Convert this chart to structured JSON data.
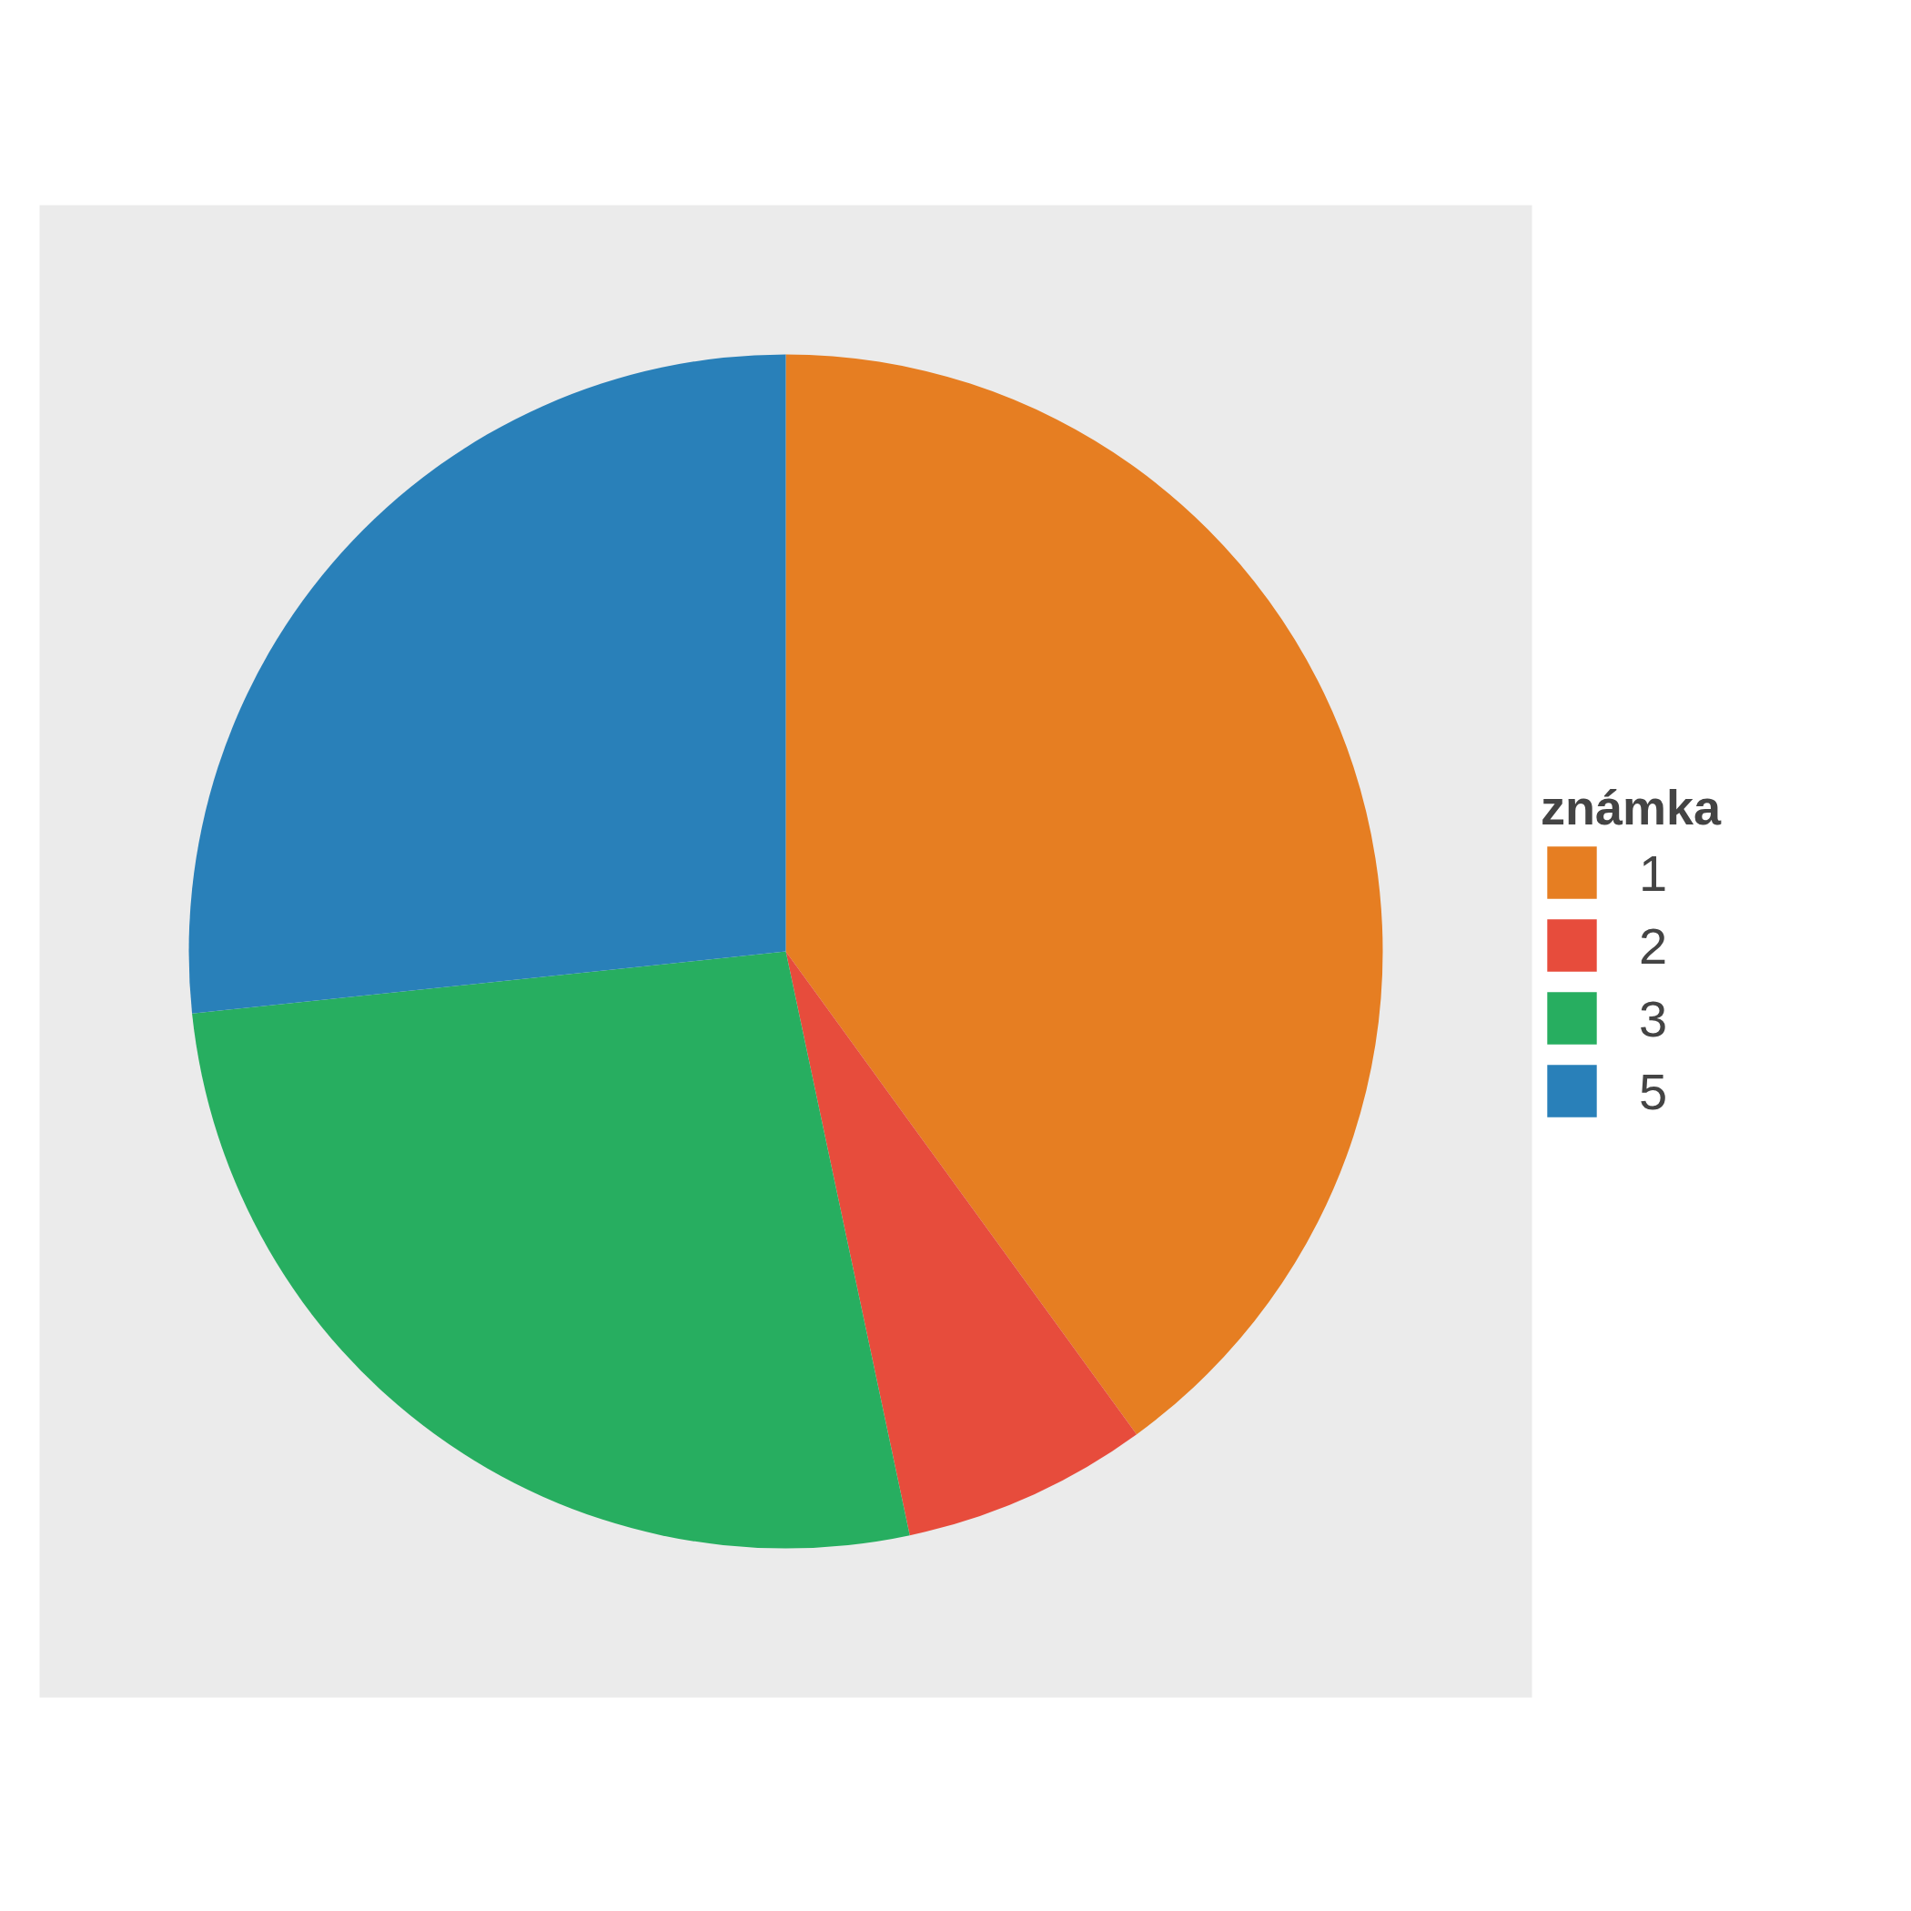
{
  "chart_data": {
    "type": "pie",
    "legend_title": "známka",
    "legend": "right",
    "categories": [
      "1",
      "2",
      "3",
      "5"
    ],
    "values": [
      40,
      6.67,
      26.67,
      26.66
    ],
    "colors": [
      "#e67e22",
      "#e74c3c",
      "#27ae60",
      "#2980b9"
    ]
  }
}
